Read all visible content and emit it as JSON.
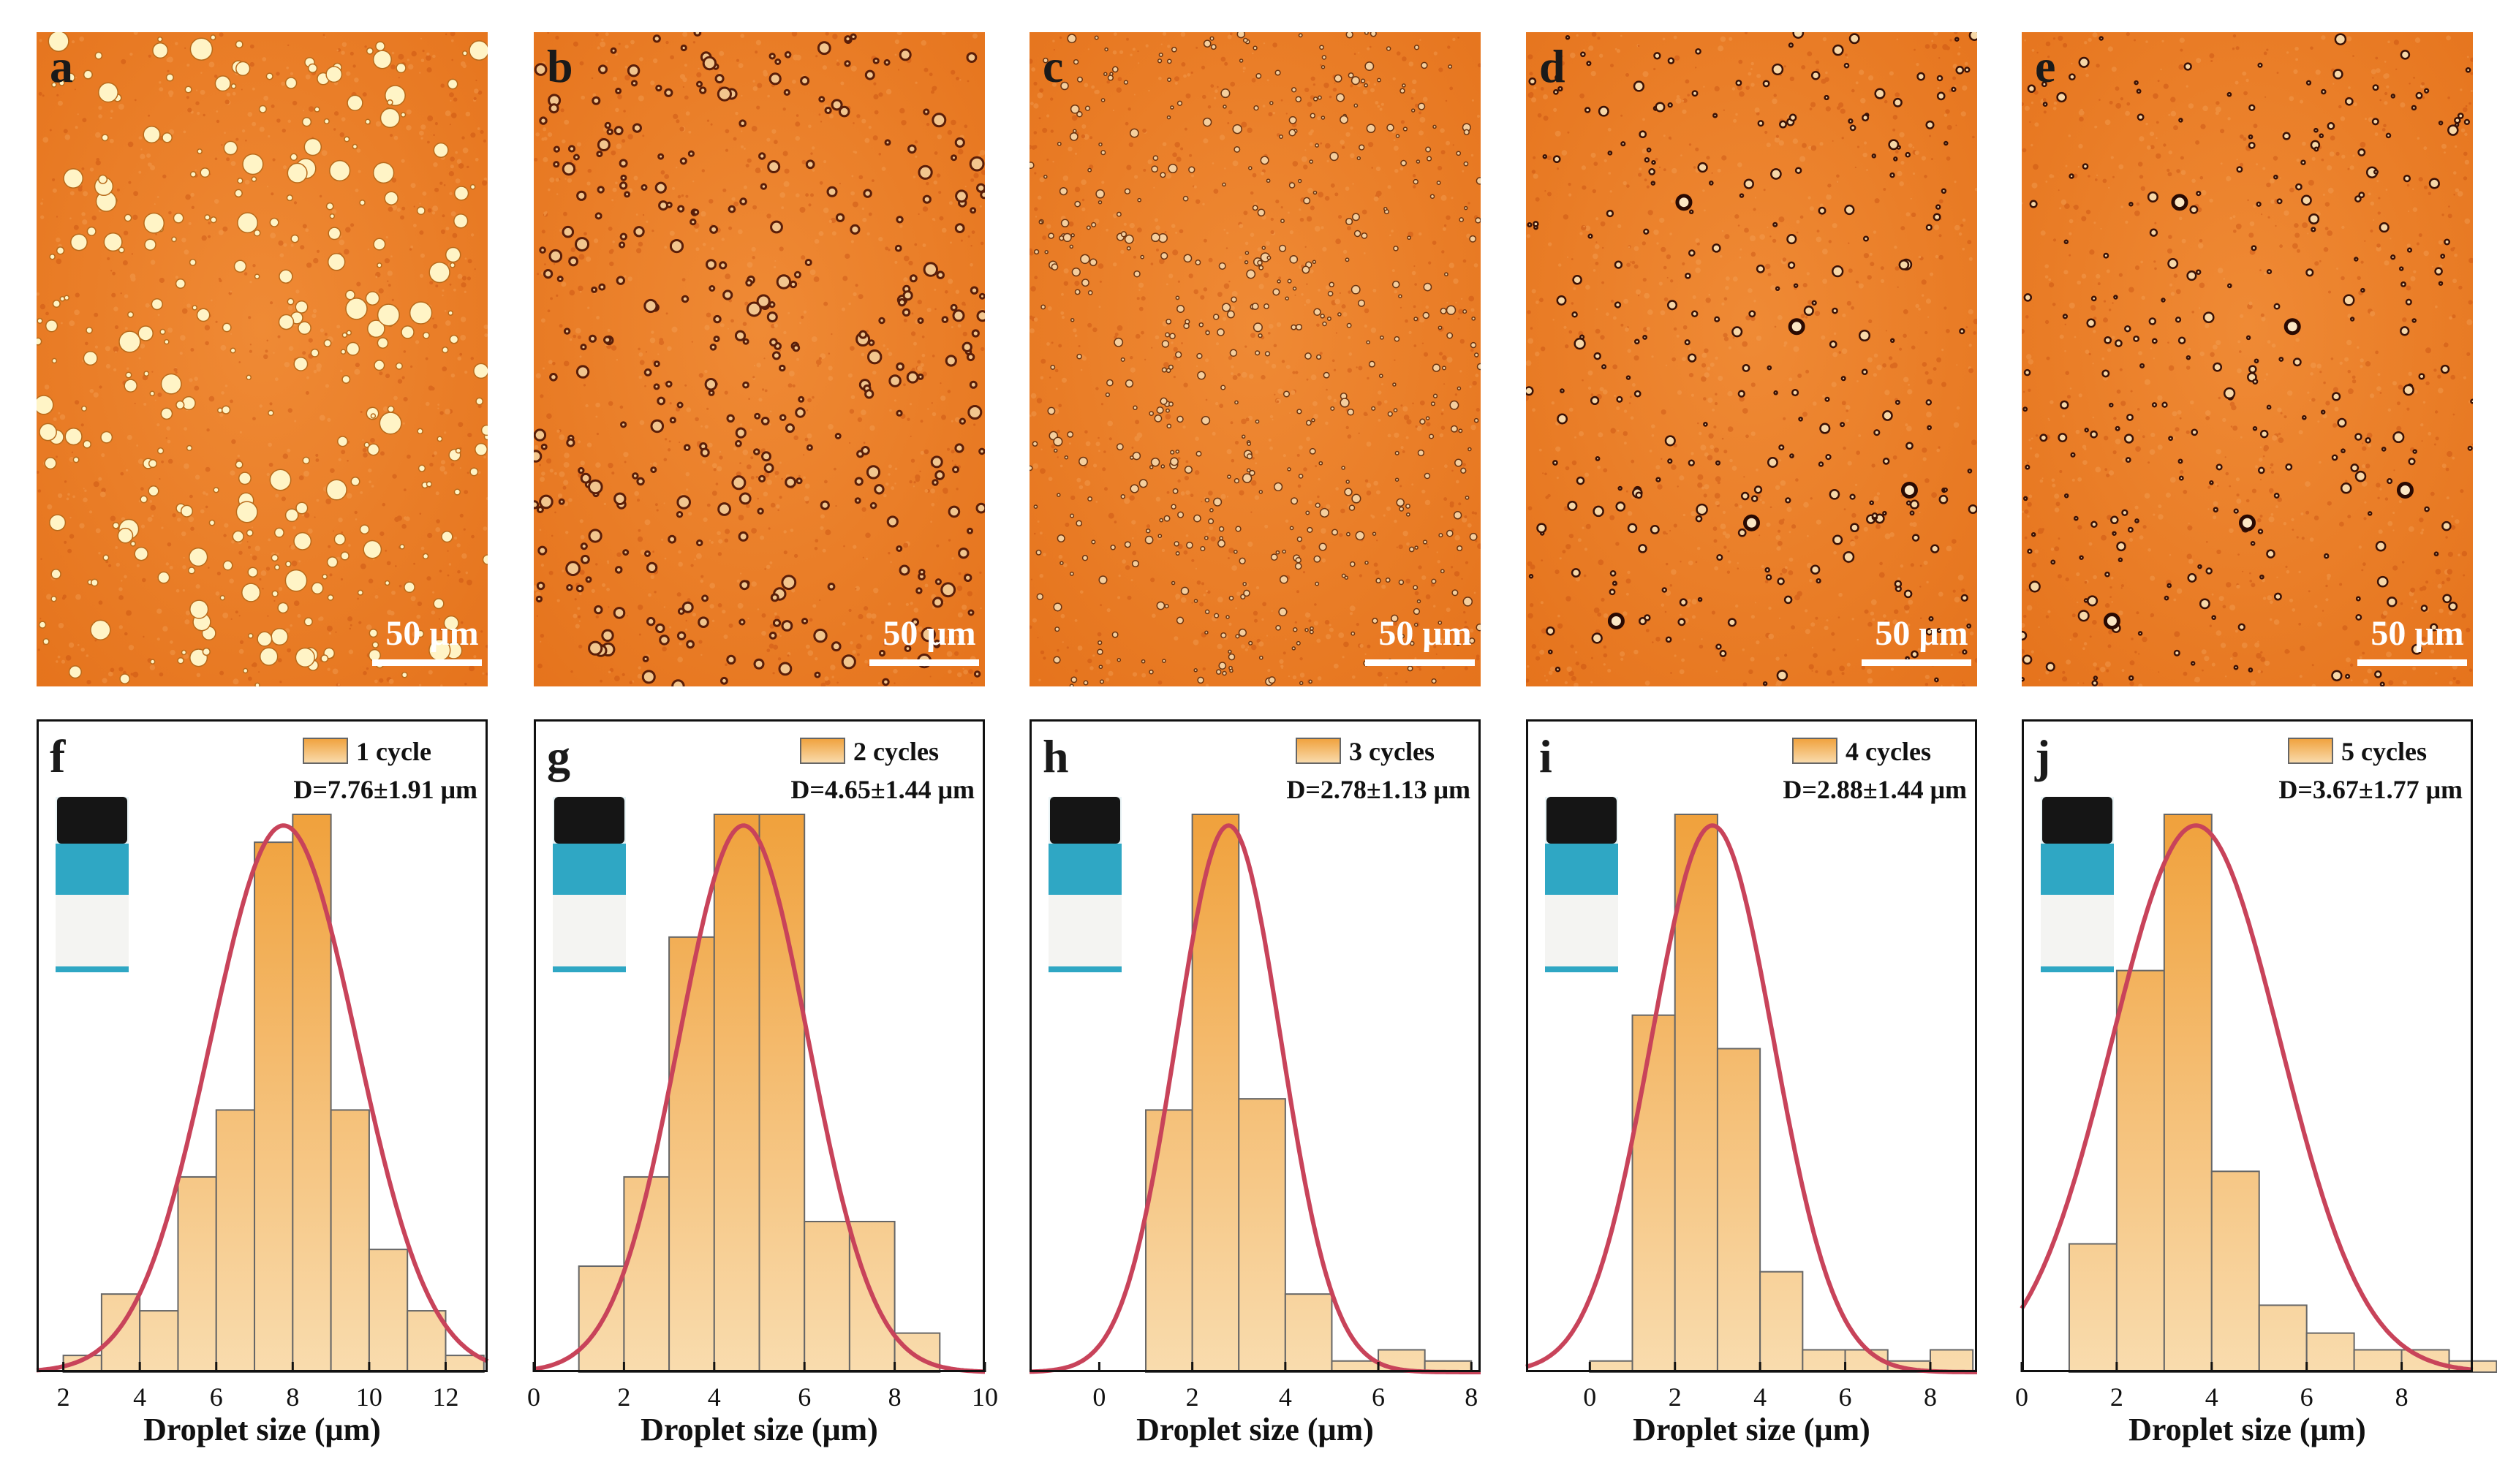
{
  "colors": {
    "bar_top": "#f0a13c",
    "bar_bottom": "#f9dcae",
    "bar_edge": "#666666",
    "fit_curve": "#c8435a",
    "micro_bg": "#e5731c",
    "micro_dark": "#c0440c"
  },
  "micrographs": [
    {
      "letter": "a",
      "scale_label": "50 μm",
      "droplet_style": "large-bright"
    },
    {
      "letter": "b",
      "scale_label": "50 μm",
      "droplet_style": "clustered-dark"
    },
    {
      "letter": "c",
      "scale_label": "50 μm",
      "droplet_style": "small-dense"
    },
    {
      "letter": "d",
      "scale_label": "50 μm",
      "droplet_style": "sparse-dark"
    },
    {
      "letter": "e",
      "scale_label": "50 μm",
      "droplet_style": "sparse-dark"
    }
  ],
  "chart_data": [
    {
      "type": "bar",
      "panel": "f",
      "legend": "1 cycle",
      "annotation": "D=7.76±1.91 μm",
      "xlabel": "Droplet size (μm)",
      "ylabel": "",
      "xlim": [
        1.3,
        13.1
      ],
      "xticks": [
        2,
        4,
        6,
        8,
        10,
        12
      ],
      "bin_edges": [
        2,
        3,
        4,
        5,
        6,
        7,
        8,
        9,
        10,
        11,
        12,
        13
      ],
      "values": [
        0.03,
        0.14,
        0.11,
        0.35,
        0.47,
        0.95,
        1.0,
        0.47,
        0.22,
        0.11,
        0.03
      ],
      "fit": {
        "mean": 7.76,
        "sd": 1.91,
        "peak": 0.98
      },
      "legend_position": "top-right",
      "inset": "photo of vial with white emulsion"
    },
    {
      "type": "bar",
      "panel": "g",
      "legend": "2 cycles",
      "annotation": "D=4.65±1.44 μm",
      "xlabel": "Droplet size (μm)",
      "ylabel": "",
      "xlim": [
        0,
        10
      ],
      "xticks": [
        0,
        2,
        4,
        6,
        8,
        10
      ],
      "bin_edges": [
        1,
        2,
        3,
        4,
        5,
        6,
        7,
        8,
        9
      ],
      "values": [
        0.19,
        0.35,
        0.78,
        1.0,
        1.0,
        0.27,
        0.27,
        0.07
      ],
      "fit": {
        "mean": 4.65,
        "sd": 1.44,
        "peak": 0.98
      },
      "legend_position": "top-right",
      "inset": "photo of vial with white emulsion"
    },
    {
      "type": "bar",
      "panel": "h",
      "legend": "3 cycles",
      "annotation": "D=2.78±1.13 μm",
      "xlabel": "Droplet size (μm)",
      "ylabel": "",
      "xlim": [
        -1.5,
        8.2
      ],
      "xticks": [
        0,
        2,
        4,
        6,
        8
      ],
      "bin_edges": [
        1,
        2,
        3,
        4,
        5,
        6,
        7,
        8
      ],
      "values": [
        0.47,
        1.0,
        0.49,
        0.14,
        0.02,
        0.04,
        0.02
      ],
      "fit": {
        "mean": 2.78,
        "sd": 1.13,
        "peak": 0.98
      },
      "legend_position": "top-right",
      "inset": "photo of vial with white emulsion"
    },
    {
      "type": "bar",
      "panel": "i",
      "legend": "4 cycles",
      "annotation": "D=2.88±1.44 μm",
      "xlabel": "Droplet size (μm)",
      "ylabel": "",
      "xlim": [
        -1.5,
        9.1
      ],
      "xticks": [
        0,
        2,
        4,
        6,
        8
      ],
      "bin_edges": [
        0,
        1,
        2,
        3,
        4,
        5,
        6,
        7,
        8,
        9
      ],
      "values": [
        0.02,
        0.64,
        1.0,
        0.58,
        0.18,
        0.04,
        0.04,
        0.02,
        0.04
      ],
      "fit": {
        "mean": 2.88,
        "sd": 1.44,
        "peak": 0.98
      },
      "legend_position": "top-right",
      "inset": "photo of vial with white emulsion"
    },
    {
      "type": "bar",
      "panel": "j",
      "legend": "5 cycles",
      "annotation": "D=3.67±1.77 μm",
      "xlabel": "Droplet size (μm)",
      "ylabel": "",
      "xlim": [
        0,
        9.5
      ],
      "xticks": [
        0,
        2,
        4,
        6,
        8
      ],
      "bin_edges": [
        1,
        2,
        3,
        4,
        5,
        6,
        7,
        8,
        9,
        10
      ],
      "values": [
        0.23,
        0.72,
        1.0,
        0.36,
        0.12,
        0.07,
        0.04,
        0.04,
        0.02
      ],
      "fit": {
        "mean": 3.67,
        "sd": 1.77,
        "peak": 0.98
      },
      "legend_position": "top-right",
      "inset": "photo of vial with white emulsion"
    }
  ]
}
